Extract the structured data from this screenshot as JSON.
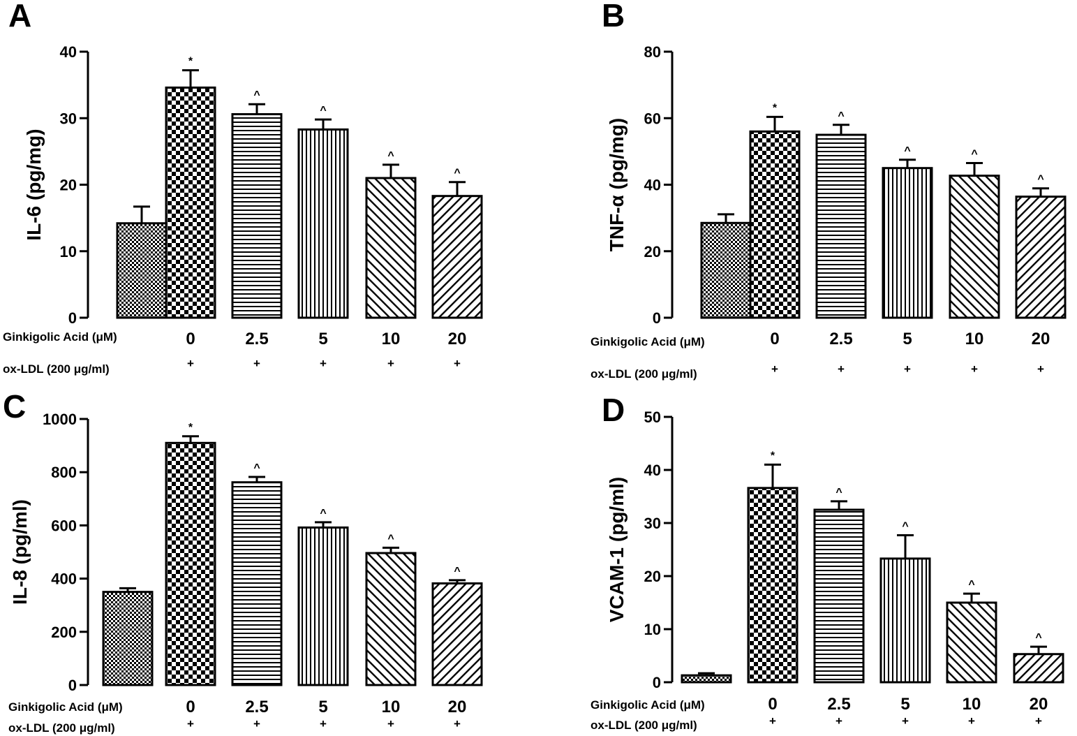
{
  "chart_data": [
    {
      "type": "bar",
      "panel": "A",
      "ylabel": "IL-6 (pg/mg)",
      "ylim": [
        0,
        40
      ],
      "yticks": [
        "0",
        "10",
        "20",
        "30",
        "40"
      ],
      "row1_label": "Ginkigolic Acid (μM)",
      "row2_label": "ox-LDL (200 μg/ml)",
      "categories": [
        "",
        "0",
        "2.5",
        "5",
        "10",
        "20"
      ],
      "ox_ldl": [
        "",
        "+",
        "+",
        "+",
        "+",
        "+"
      ],
      "values": [
        14.2,
        34.6,
        30.6,
        28.3,
        21.0,
        18.3
      ],
      "errors": [
        2.5,
        2.6,
        1.5,
        1.5,
        2.0,
        2.1
      ],
      "annotations": [
        "",
        "*",
        "^",
        "^",
        "^",
        "^"
      ]
    },
    {
      "type": "bar",
      "panel": "B",
      "ylabel": "TNF-α  (pg/mg)",
      "ylim": [
        0,
        80
      ],
      "yticks": [
        "0",
        "20",
        "40",
        "60",
        "80"
      ],
      "row1_label": "Ginkigolic Acid (μM)",
      "row2_label": "ox-LDL (200 μg/ml)",
      "categories": [
        "",
        "0",
        "2.5",
        "5",
        "10",
        "20"
      ],
      "ox_ldl": [
        "",
        "+",
        "+",
        "+",
        "+",
        "+"
      ],
      "values": [
        28.5,
        56.0,
        55.0,
        45.0,
        42.7,
        36.4
      ],
      "errors": [
        2.6,
        4.4,
        3.0,
        2.5,
        3.8,
        2.5
      ],
      "annotations": [
        "",
        "*",
        "^",
        "^",
        "^",
        "^"
      ]
    },
    {
      "type": "bar",
      "panel": "C",
      "ylabel": "IL-8 (pg/ml)",
      "ylim": [
        0,
        1000
      ],
      "yticks": [
        "0",
        "200",
        "400",
        "600",
        "800",
        "1000"
      ],
      "row1_label": "Ginkigolic Acid (μM)",
      "row2_label": "ox-LDL (200 μg/ml)",
      "categories": [
        "",
        "0",
        "2.5",
        "5",
        "10",
        "20"
      ],
      "ox_ldl": [
        "",
        "+",
        "+",
        "+",
        "+",
        "+"
      ],
      "values": [
        350,
        910,
        762,
        592,
        496,
        382
      ],
      "errors": [
        14,
        25,
        20,
        20,
        20,
        12
      ],
      "annotations": [
        "",
        "*",
        "^",
        "^",
        "^",
        "^"
      ]
    },
    {
      "type": "bar",
      "panel": "D",
      "ylabel": "VCAM-1 (pg/ml)",
      "ylim": [
        0,
        50
      ],
      "yticks": [
        "0",
        "10",
        "20",
        "30",
        "40",
        "50"
      ],
      "row1_label": "Ginkigolic Acid (μM)",
      "row2_label": "ox-LDL (200 μg/ml)",
      "categories": [
        "",
        "0",
        "2.5",
        "5",
        "10",
        "20"
      ],
      "ox_ldl": [
        "",
        "+",
        "+",
        "+",
        "+",
        "+"
      ],
      "values": [
        1.3,
        36.6,
        32.5,
        23.3,
        15.0,
        5.3
      ],
      "errors": [
        0.4,
        4.4,
        1.6,
        4.4,
        1.7,
        1.4
      ],
      "annotations": [
        "",
        "*",
        "^",
        "^",
        "^",
        "^"
      ]
    }
  ]
}
